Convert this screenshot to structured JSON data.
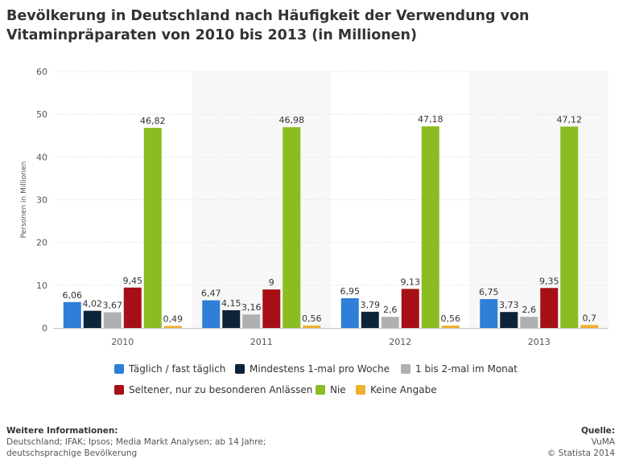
{
  "title": "Bevölkerung in Deutschland nach Häufigkeit der Verwendung von Vitaminpräparaten von 2010 bis 2013 (in Millionen)",
  "chart_data": {
    "type": "bar",
    "title": "Bevölkerung in Deutschland nach Häufigkeit der Verwendung von Vitaminpräparaten von 2010 bis 2013 (in Millionen)",
    "xlabel": "",
    "ylabel": "Personen in Millionen",
    "ylim": [
      0,
      60
    ],
    "yticks": [
      0,
      10,
      20,
      30,
      40,
      50,
      60
    ],
    "categories": [
      "2010",
      "2011",
      "2012",
      "2013"
    ],
    "series": [
      {
        "name": "Täglich / fast täglich",
        "color": "#2f7ed8",
        "values": [
          6.06,
          6.47,
          6.95,
          6.75
        ],
        "labels": [
          "6,06",
          "6,47",
          "6,95",
          "6,75"
        ]
      },
      {
        "name": "Mindestens 1-mal pro Woche",
        "color": "#0d233a",
        "values": [
          4.02,
          4.15,
          3.79,
          3.73
        ],
        "labels": [
          "4,02",
          "4,15",
          "3,79",
          "3,73"
        ]
      },
      {
        "name": "1 bis 2-mal im Monat",
        "color": "#b0b0b0",
        "values": [
          3.67,
          3.16,
          2.6,
          2.6
        ],
        "labels": [
          "3,67",
          "3,16",
          "2,6",
          "2,6"
        ]
      },
      {
        "name": "Seltener, nur zu besonderen Anlässen",
        "color": "#a50f15",
        "values": [
          9.45,
          9,
          9.13,
          9.35
        ],
        "labels": [
          "9,45",
          "9",
          "9,13",
          "9,35"
        ]
      },
      {
        "name": "Nie",
        "color": "#8bbc21",
        "values": [
          46.82,
          46.98,
          47.18,
          47.12
        ],
        "labels": [
          "46,82",
          "46,98",
          "47,18",
          "47,12"
        ]
      },
      {
        "name": "Keine Angabe",
        "color": "#f0b030",
        "values": [
          0.49,
          0.56,
          0.56,
          0.7
        ],
        "labels": [
          "0,49",
          "0,56",
          "0,56",
          "0,7"
        ]
      }
    ],
    "grid": true,
    "legend": "bottom"
  },
  "footer": {
    "info_heading": "Weitere Informationen:",
    "info_line1": "Deutschland; IFAK; Ipsos; Media Markt Analysen; ab 14 Jahre;",
    "info_line2": "deutschsprachige Bevölkerung",
    "source_heading": "Quelle:",
    "source_name": "VuMA",
    "copyright": "© Statista 2014"
  }
}
